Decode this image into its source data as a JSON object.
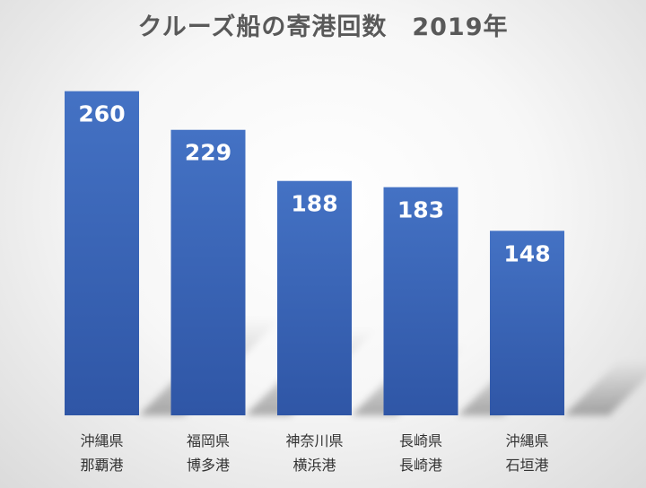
{
  "chart_data": {
    "type": "bar",
    "title": "クルーズ船の寄港回数　2019年",
    "categories": [
      [
        "沖縄県",
        "那覇港"
      ],
      [
        "福岡県",
        "博多港"
      ],
      [
        "神奈川県",
        "横浜港"
      ],
      [
        "長崎県",
        "長崎港"
      ],
      [
        "沖縄県",
        "石垣港"
      ]
    ],
    "values": [
      260,
      229,
      188,
      183,
      148
    ],
    "ylim": [
      0,
      295
    ],
    "grid": false,
    "legend": "none",
    "bar_color_top": "#4472c4",
    "bar_color_bottom": "#2f56a6",
    "value_label_color": "#ffffff"
  }
}
